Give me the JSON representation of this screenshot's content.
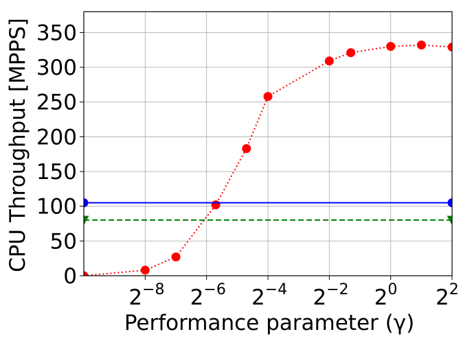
{
  "chart_data": {
    "type": "line",
    "xscale": "log2",
    "xlim": [
      -10,
      2
    ],
    "ylim": [
      0,
      380
    ],
    "xlabel": "Performance parameter (γ)",
    "ylabel": "CPU Throughput [MPPS]",
    "grid": true,
    "x_ticks": [
      {
        "base": "2",
        "exp": "−8",
        "value": -8
      },
      {
        "base": "2",
        "exp": "−6",
        "value": -6
      },
      {
        "base": "2",
        "exp": "−4",
        "value": -4
      },
      {
        "base": "2",
        "exp": "−2",
        "value": -2
      },
      {
        "base": "2",
        "exp": "0",
        "value": 0
      },
      {
        "base": "2",
        "exp": "2",
        "value": 2
      }
    ],
    "y_ticks": [
      "0",
      "50",
      "100",
      "150",
      "200",
      "250",
      "300",
      "350"
    ],
    "series": [
      {
        "color": "#ff0000",
        "style": "dotted",
        "marker": "circle",
        "x": [
          -10,
          -8,
          -7,
          -5.7,
          -4.7,
          -4,
          -2,
          -1.3,
          0,
          1,
          2
        ],
        "y": [
          0,
          8,
          27,
          102,
          183,
          258,
          309,
          321,
          330,
          332,
          329
        ]
      },
      {
        "color": "#0000ff",
        "style": "solid",
        "marker": "circle",
        "x": [
          -10,
          2
        ],
        "y": [
          105,
          105
        ]
      },
      {
        "color": "#008000",
        "style": "dashed",
        "marker": "triangle-down",
        "x": [
          -10,
          2
        ],
        "y": [
          80,
          80
        ]
      }
    ]
  }
}
